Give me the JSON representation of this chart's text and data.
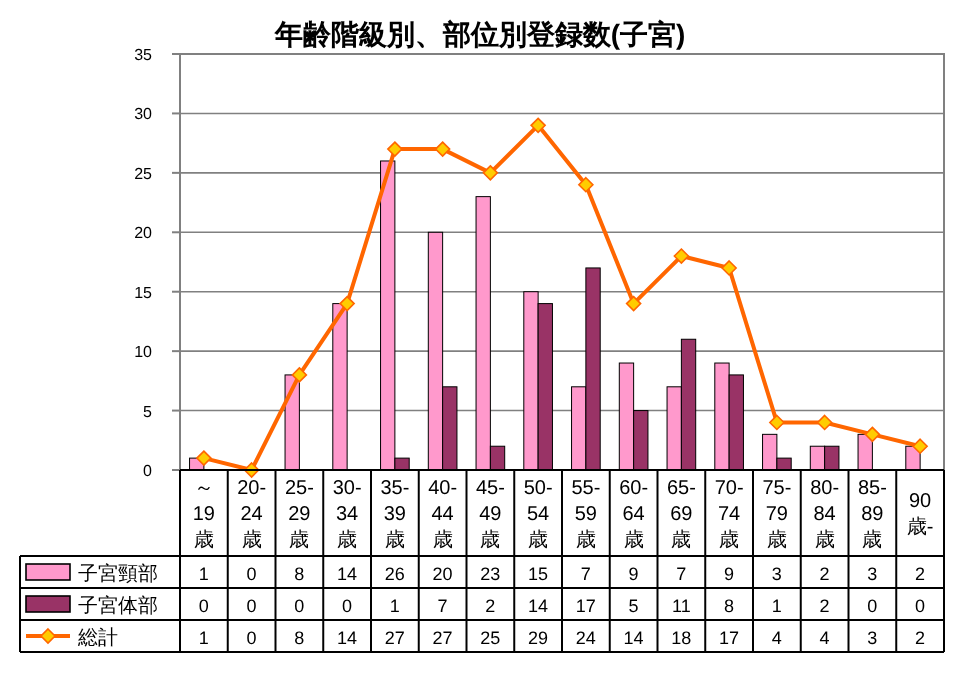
{
  "chart_data": {
    "type": "bar",
    "title": "年齢階級別、部位別登録数(子宮)",
    "categories": [
      "～19歳",
      "20-24歳",
      "25-29歳",
      "30-34歳",
      "35-39歳",
      "40-44歳",
      "45-49歳",
      "50-54歳",
      "55-59歳",
      "60-64歳",
      "65-69歳",
      "70-74歳",
      "75-79歳",
      "80-84歳",
      "85-89歳",
      "90歳-"
    ],
    "series": [
      {
        "name": "子宮頸部",
        "color": "#ff99cc",
        "values": [
          1,
          0,
          8,
          14,
          26,
          20,
          23,
          15,
          7,
          9,
          7,
          9,
          3,
          2,
          3,
          2
        ]
      },
      {
        "name": "子宮体部",
        "color": "#993366",
        "values": [
          0,
          0,
          0,
          0,
          1,
          7,
          2,
          14,
          17,
          5,
          11,
          8,
          1,
          2,
          0,
          0
        ]
      },
      {
        "name": "総計",
        "type": "line",
        "color": "#ff6600",
        "marker": "diamond",
        "values": [
          1,
          0,
          8,
          14,
          27,
          27,
          25,
          29,
          24,
          14,
          18,
          17,
          4,
          4,
          3,
          2
        ]
      }
    ],
    "ylim": [
      0,
      35
    ],
    "yticks": [
      0,
      5,
      10,
      15,
      20,
      25,
      30,
      35
    ],
    "grid": "y",
    "legend": "bottom",
    "data_labels": true
  }
}
